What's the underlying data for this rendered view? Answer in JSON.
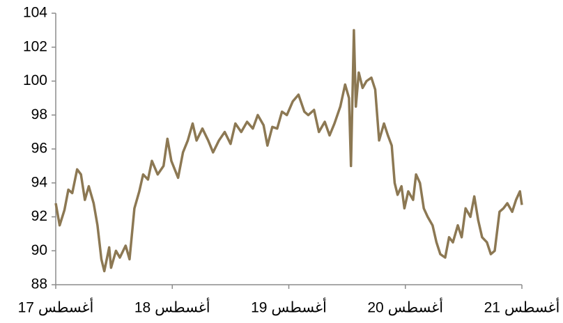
{
  "chart_data": {
    "type": "line",
    "color": "#8c7853",
    "xlim": [
      0,
      48
    ],
    "xticks": [
      {
        "value": 0,
        "label": "أغسطس 17"
      },
      {
        "value": 12,
        "label": "أغسطس 18"
      },
      {
        "value": 24,
        "label": "أغسطس 19"
      },
      {
        "value": 36,
        "label": "أغسطس 20"
      },
      {
        "value": 48,
        "label": "أغسطس 21"
      }
    ],
    "ylim": [
      88,
      104
    ],
    "yticks": [
      88,
      90,
      92,
      94,
      96,
      98,
      100,
      102,
      104
    ],
    "x": [
      0,
      0.4,
      0.9,
      1.3,
      1.7,
      2.2,
      2.6,
      3.0,
      3.4,
      3.9,
      4.3,
      4.7,
      5.0,
      5.5,
      5.7,
      6.2,
      6.6,
      7.2,
      7.6,
      8.1,
      8.6,
      9.0,
      9.5,
      9.9,
      10.5,
      11.1,
      11.5,
      11.9,
      12.6,
      13.1,
      13.6,
      14.1,
      14.5,
      15.1,
      15.7,
      16.2,
      16.8,
      17.4,
      18.0,
      18.5,
      19.1,
      19.7,
      20.3,
      20.8,
      21.4,
      21.8,
      22.3,
      22.8,
      23.3,
      23.8,
      24.4,
      25.0,
      25.6,
      26.0,
      26.6,
      27.1,
      27.7,
      28.2,
      28.7,
      29.3,
      29.8,
      30.2,
      30.4,
      30.7,
      30.9,
      31.2,
      31.6,
      32.0,
      32.5,
      32.9,
      33.3,
      33.8,
      34.2,
      34.6,
      34.9,
      35.2,
      35.6,
      35.9,
      36.3,
      36.8,
      37.1,
      37.5,
      37.9,
      38.3,
      38.8,
      39.2,
      39.6,
      40.1,
      40.5,
      40.9,
      41.4,
      41.8,
      42.2,
      42.7,
      43.1,
      43.5,
      43.9,
      44.4,
      44.8,
      45.2,
      45.7,
      46.1,
      46.5,
      47.0,
      47.4,
      47.8,
      48.0
    ],
    "values": [
      92.8,
      91.5,
      92.4,
      93.6,
      93.4,
      94.8,
      94.5,
      93.0,
      93.8,
      92.8,
      91.5,
      89.5,
      88.8,
      90.2,
      89.0,
      90.0,
      89.6,
      90.3,
      89.5,
      92.5,
      93.5,
      94.5,
      94.2,
      95.3,
      94.5,
      95.0,
      96.6,
      95.3,
      94.3,
      95.8,
      96.5,
      97.5,
      96.5,
      97.2,
      96.5,
      95.8,
      96.5,
      97.0,
      96.3,
      97.5,
      97.0,
      97.6,
      97.2,
      98.0,
      97.4,
      96.2,
      97.3,
      97.2,
      98.2,
      98.0,
      98.8,
      99.2,
      98.2,
      98.0,
      98.3,
      97.0,
      97.6,
      96.8,
      97.5,
      98.5,
      99.8,
      99.0,
      95.0,
      103.0,
      98.5,
      100.5,
      99.6,
      100.0,
      100.2,
      99.5,
      96.5,
      97.5,
      96.8,
      96.2,
      94.0,
      93.3,
      93.8,
      92.5,
      93.5,
      93.0,
      94.5,
      94.0,
      92.5,
      92.0,
      91.5,
      90.5,
      89.8,
      89.6,
      90.8,
      90.5,
      91.5,
      90.8,
      92.5,
      92.0,
      93.2,
      91.8,
      90.8,
      90.5,
      89.8,
      90.0,
      92.3,
      92.5,
      92.8,
      92.3,
      93.0,
      93.5,
      92.7
    ]
  }
}
